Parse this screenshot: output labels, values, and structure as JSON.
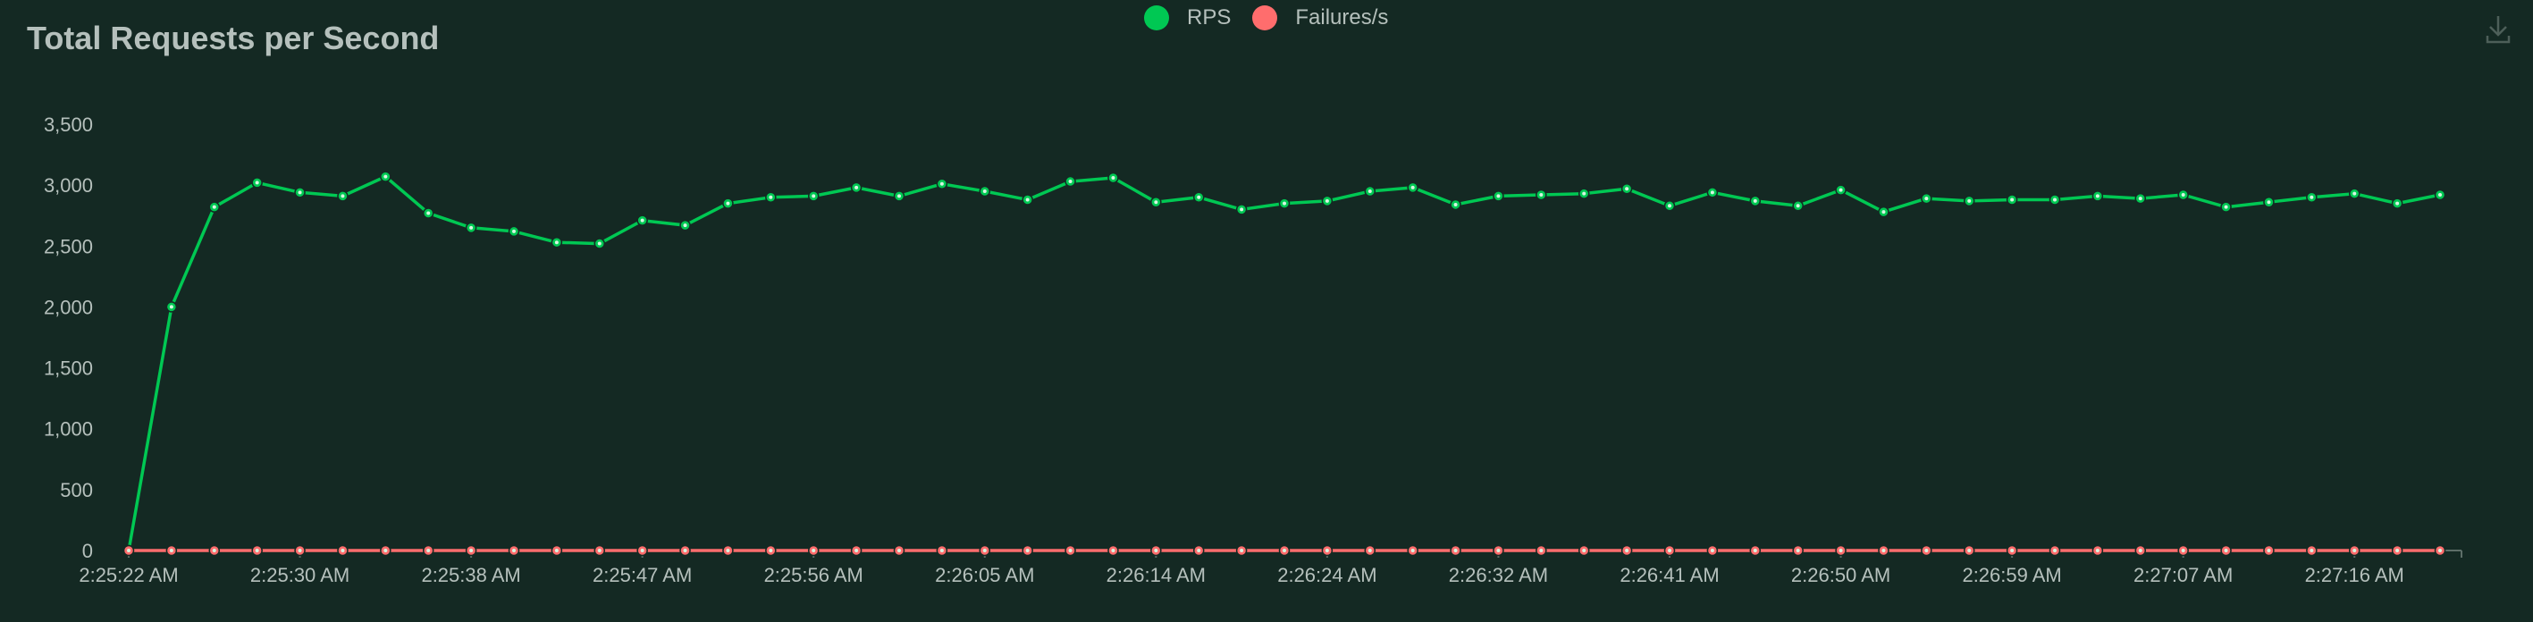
{
  "title": "Total Requests per Second",
  "legend": [
    {
      "label": "RPS",
      "color": "#00c853"
    },
    {
      "label": "Failures/s",
      "color": "#ff6d6d"
    }
  ],
  "download_icon": "download-icon",
  "chart_data": {
    "type": "line",
    "title": "Total Requests per Second",
    "xlabel": "",
    "ylabel": "",
    "ylim": [
      0,
      3500
    ],
    "yticks": [
      "0",
      "500",
      "1,000",
      "1,500",
      "2,000",
      "2,500",
      "3,000",
      "3,500"
    ],
    "ytick_values": [
      0,
      500,
      1000,
      1500,
      2000,
      2500,
      3000,
      3500
    ],
    "grid": false,
    "legend_position": "top-center",
    "xtick_labels": [
      "2:25:22 AM",
      "2:25:30 AM",
      "2:25:38 AM",
      "2:25:47 AM",
      "2:25:56 AM",
      "2:26:05 AM",
      "2:26:14 AM",
      "2:26:24 AM",
      "2:26:32 AM",
      "2:26:41 AM",
      "2:26:50 AM",
      "2:26:59 AM",
      "2:27:07 AM",
      "2:27:16 AM"
    ],
    "xtick_indices": [
      0,
      4,
      8,
      12,
      16,
      20,
      24,
      28,
      32,
      36,
      40,
      44,
      48,
      52
    ],
    "series": [
      {
        "name": "RPS",
        "color": "#00c853",
        "values": [
          0,
          2000,
          2820,
          3020,
          2940,
          2910,
          3070,
          2770,
          2650,
          2620,
          2530,
          2520,
          2710,
          2670,
          2850,
          2900,
          2910,
          2980,
          2910,
          3010,
          2950,
          2880,
          3030,
          3060,
          2860,
          2900,
          2800,
          2850,
          2870,
          2950,
          2980,
          2840,
          2910,
          2920,
          2930,
          2970,
          2830,
          2940,
          2870,
          2830,
          2960,
          2780,
          2890,
          2870,
          2880,
          2880,
          2910,
          2890,
          2920,
          2820,
          2860,
          2900,
          2930,
          2850,
          2920
        ]
      },
      {
        "name": "Failures/s",
        "color": "#ff6d6d",
        "values": [
          0,
          0,
          0,
          0,
          0,
          0,
          0,
          0,
          0,
          0,
          0,
          0,
          0,
          0,
          0,
          0,
          0,
          0,
          0,
          0,
          0,
          0,
          0,
          0,
          0,
          0,
          0,
          0,
          0,
          0,
          0,
          0,
          0,
          0,
          0,
          0,
          0,
          0,
          0,
          0,
          0,
          0,
          0,
          0,
          0,
          0,
          0,
          0,
          0,
          0,
          0,
          0,
          0,
          0,
          0
        ]
      }
    ]
  }
}
